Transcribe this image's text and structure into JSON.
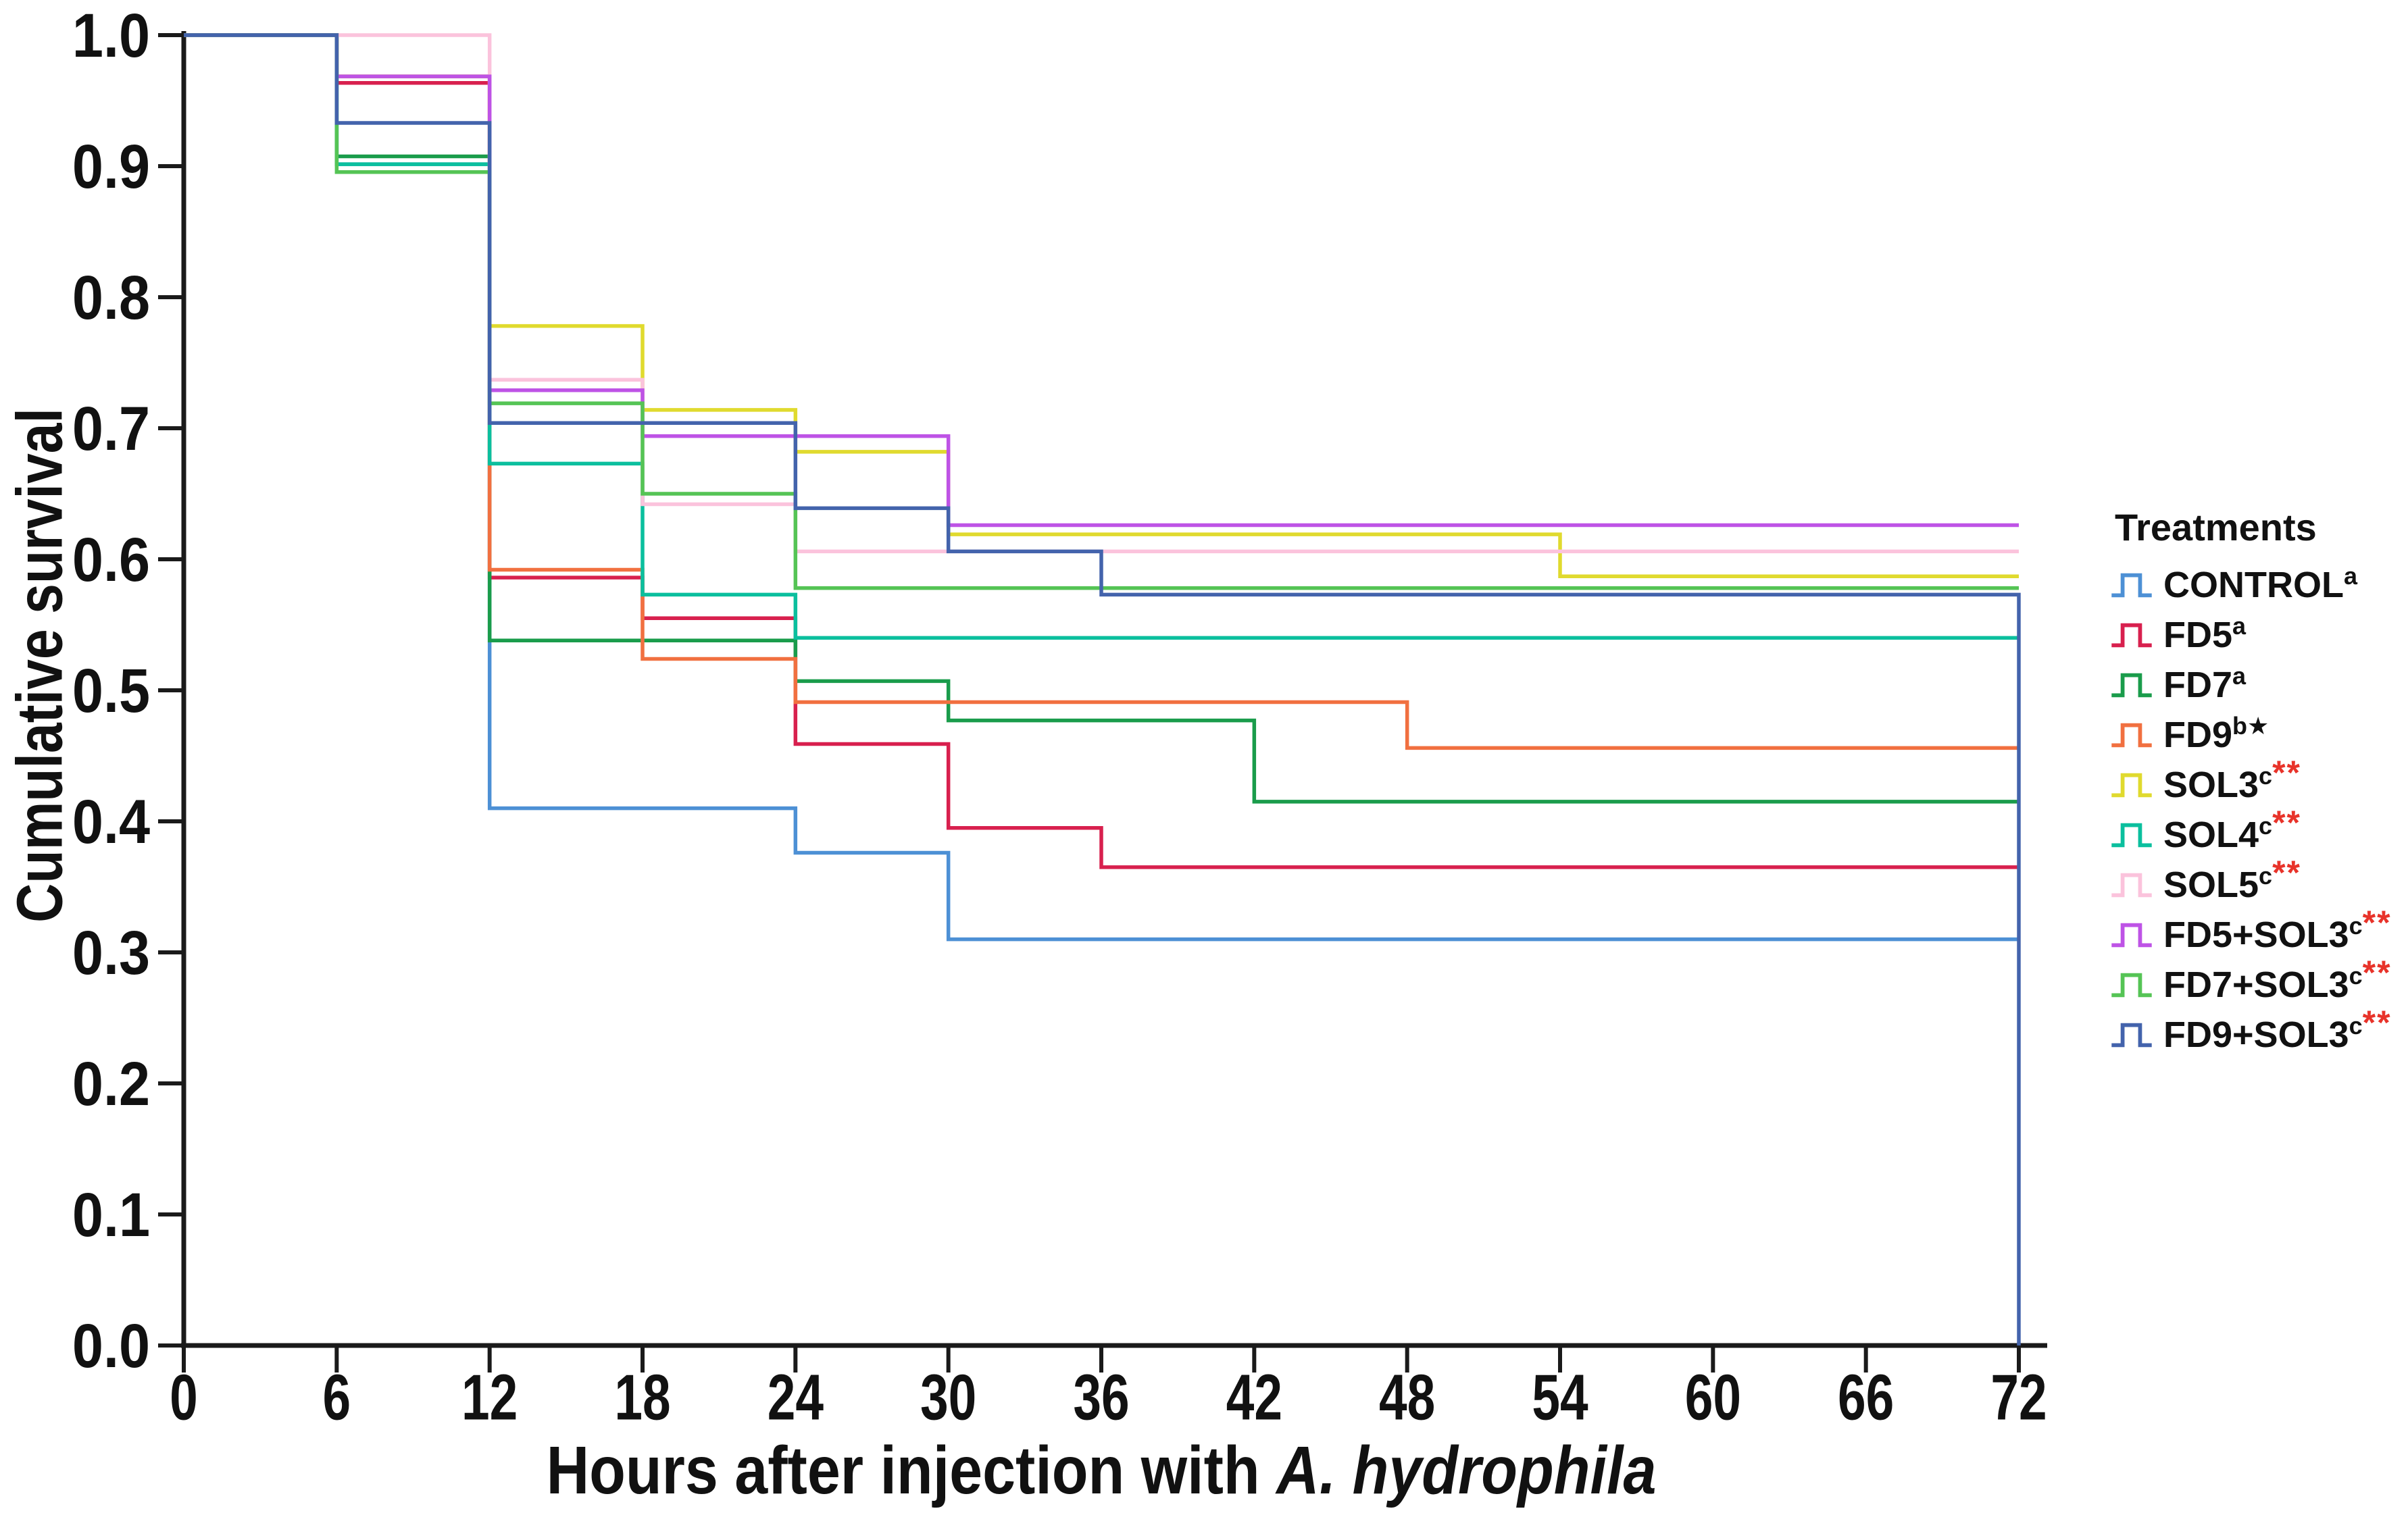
{
  "chart_data": {
    "type": "line",
    "subtype": "kaplan-meier-step-survival",
    "title": "",
    "xlabel": "Hours after injection with A. hydrophila",
    "xlabel_regular": "Hours after injection with ",
    "xlabel_italic": "A. hydrophila",
    "ylabel": "Cumulative survival",
    "xlim": [
      0,
      72
    ],
    "ylim": [
      0.0,
      1.0
    ],
    "grid": "off",
    "legend_position": "right",
    "legend_title": "Treatments",
    "xticks": [
      0,
      6,
      12,
      18,
      24,
      30,
      36,
      42,
      48,
      54,
      60,
      66,
      72
    ],
    "yticks": [
      "0.0",
      "0.1",
      "0.2",
      "0.3",
      "0.4",
      "0.5",
      "0.6",
      "0.7",
      "0.8",
      "0.9",
      "1.0"
    ],
    "star_color_red": "#e8332a",
    "star_color_black": "#111111",
    "axis_color": "#1a1a1a",
    "series": [
      {
        "name": "CONTROL",
        "superscript": "a",
        "stars": "",
        "star_style": "none",
        "color": "#4d90d5",
        "steps": [
          [
            0,
            1.0
          ],
          [
            6,
            0.9015
          ],
          [
            12,
            0.41
          ],
          [
            24,
            0.376
          ],
          [
            30,
            0.31
          ]
        ]
      },
      {
        "name": "FD5",
        "superscript": "a",
        "stars": "",
        "star_style": "none",
        "color": "#d8204e",
        "steps": [
          [
            0,
            1.0
          ],
          [
            6,
            0.9635
          ],
          [
            12,
            0.586
          ],
          [
            18,
            0.555
          ],
          [
            24,
            0.459
          ],
          [
            30,
            0.395
          ],
          [
            36,
            0.365
          ]
        ]
      },
      {
        "name": "FD7",
        "superscript": "a",
        "stars": "",
        "star_style": "none",
        "color": "#1a9c4b",
        "steps": [
          [
            0,
            1.0
          ],
          [
            6,
            0.9075
          ],
          [
            12,
            0.538
          ],
          [
            24,
            0.507
          ],
          [
            30,
            0.477
          ],
          [
            42,
            0.415
          ]
        ]
      },
      {
        "name": "FD9",
        "superscript": "b",
        "stars": "★",
        "star_style": "black",
        "color": "#f17040",
        "steps": [
          [
            0,
            1.0
          ],
          [
            6,
            0.9685
          ],
          [
            12,
            0.592
          ],
          [
            18,
            0.524
          ],
          [
            24,
            0.491
          ],
          [
            48,
            0.456
          ]
        ]
      },
      {
        "name": "SOL3",
        "superscript": "c",
        "stars": "**",
        "star_style": "red",
        "color": "#e0da2e",
        "steps": [
          [
            0,
            1.0
          ],
          [
            6,
            0.9685
          ],
          [
            12,
            0.778
          ],
          [
            18,
            0.714
          ],
          [
            24,
            0.682
          ],
          [
            30,
            0.619
          ],
          [
            54,
            0.587
          ]
        ]
      },
      {
        "name": "SOL4",
        "superscript": "c",
        "stars": "**",
        "star_style": "red",
        "color": "#0bbf9e",
        "steps": [
          [
            0,
            1.0
          ],
          [
            6,
            0.9015
          ],
          [
            12,
            0.673
          ],
          [
            18,
            0.573
          ],
          [
            24,
            0.54
          ]
        ]
      },
      {
        "name": "SOL5",
        "superscript": "c",
        "stars": "**",
        "star_style": "red",
        "color": "#fbc3dc",
        "steps": [
          [
            0,
            1.0
          ],
          [
            12,
            0.737
          ],
          [
            18,
            0.642
          ],
          [
            24,
            0.606
          ]
        ]
      },
      {
        "name": "FD5+SOL3",
        "superscript": "c",
        "stars": "**",
        "star_style": "red",
        "color": "#be53e6",
        "steps": [
          [
            0,
            1.0
          ],
          [
            6,
            0.9685
          ],
          [
            12,
            0.729
          ],
          [
            18,
            0.694
          ],
          [
            30,
            0.626
          ]
        ]
      },
      {
        "name": "FD7+SOL3",
        "superscript": "c",
        "stars": "**",
        "star_style": "red",
        "color": "#55c455",
        "steps": [
          [
            0,
            1.0
          ],
          [
            6,
            0.8955
          ],
          [
            12,
            0.719
          ],
          [
            18,
            0.65
          ],
          [
            24,
            0.578
          ]
        ]
      },
      {
        "name": "FD9+SOL3",
        "superscript": "c",
        "stars": "**",
        "star_style": "red",
        "color": "#4363ac",
        "steps": [
          [
            0,
            1.0
          ],
          [
            6,
            0.933
          ],
          [
            12,
            0.704
          ],
          [
            24,
            0.639
          ],
          [
            30,
            0.606
          ],
          [
            36,
            0.573
          ],
          [
            72,
            0.0
          ]
        ]
      }
    ]
  },
  "layout_note": "values read from pixels; survival levels approximate to ±0.01"
}
